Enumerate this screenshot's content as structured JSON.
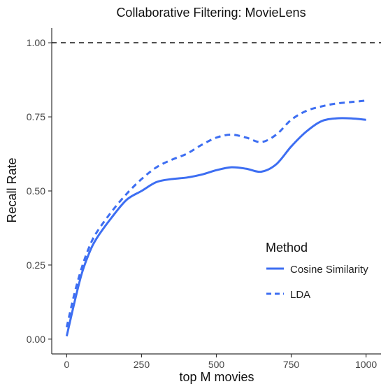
{
  "chart_data": {
    "type": "line",
    "title": "Collaborative Filtering: MovieLens",
    "xlabel": "top M movies",
    "ylabel": "Recall Rate",
    "xlim": [
      -50,
      1050
    ],
    "ylim": [
      -0.05,
      1.05
    ],
    "x_ticks": [
      0,
      250,
      500,
      750,
      1000
    ],
    "x_tick_labels": [
      "0",
      "250",
      "500",
      "750",
      "1000"
    ],
    "y_ticks": [
      0.0,
      0.25,
      0.5,
      0.75,
      1.0
    ],
    "y_tick_labels": [
      "0.00",
      "0.25",
      "0.50",
      "0.75",
      "1.00"
    ],
    "grid": false,
    "legend": {
      "title": "Method",
      "placement": "right-bottom inside",
      "entries": [
        "Cosine Similarity",
        "LDA"
      ]
    },
    "reference_line": {
      "y": 1.0,
      "style": "dashed",
      "color": "#000000"
    },
    "series": [
      {
        "name": "Cosine Similarity",
        "style": "solid",
        "color": "#3d6ef2",
        "x": [
          0,
          25,
          50,
          75,
          100,
          150,
          200,
          250,
          300,
          350,
          400,
          450,
          500,
          550,
          600,
          650,
          700,
          750,
          800,
          850,
          900,
          950,
          1000
        ],
        "y": [
          0.01,
          0.12,
          0.22,
          0.29,
          0.34,
          0.41,
          0.47,
          0.5,
          0.53,
          0.54,
          0.545,
          0.555,
          0.57,
          0.58,
          0.575,
          0.565,
          0.59,
          0.65,
          0.7,
          0.735,
          0.745,
          0.745,
          0.74
        ]
      },
      {
        "name": "LDA",
        "style": "dashed",
        "color": "#3d6ef2",
        "x": [
          0,
          25,
          50,
          75,
          100,
          150,
          200,
          250,
          300,
          350,
          400,
          450,
          500,
          550,
          600,
          650,
          700,
          750,
          800,
          850,
          900,
          950,
          1000
        ],
        "y": [
          0.04,
          0.15,
          0.24,
          0.31,
          0.36,
          0.43,
          0.49,
          0.54,
          0.58,
          0.605,
          0.625,
          0.655,
          0.68,
          0.69,
          0.68,
          0.665,
          0.69,
          0.74,
          0.77,
          0.785,
          0.795,
          0.8,
          0.805
        ]
      }
    ]
  }
}
